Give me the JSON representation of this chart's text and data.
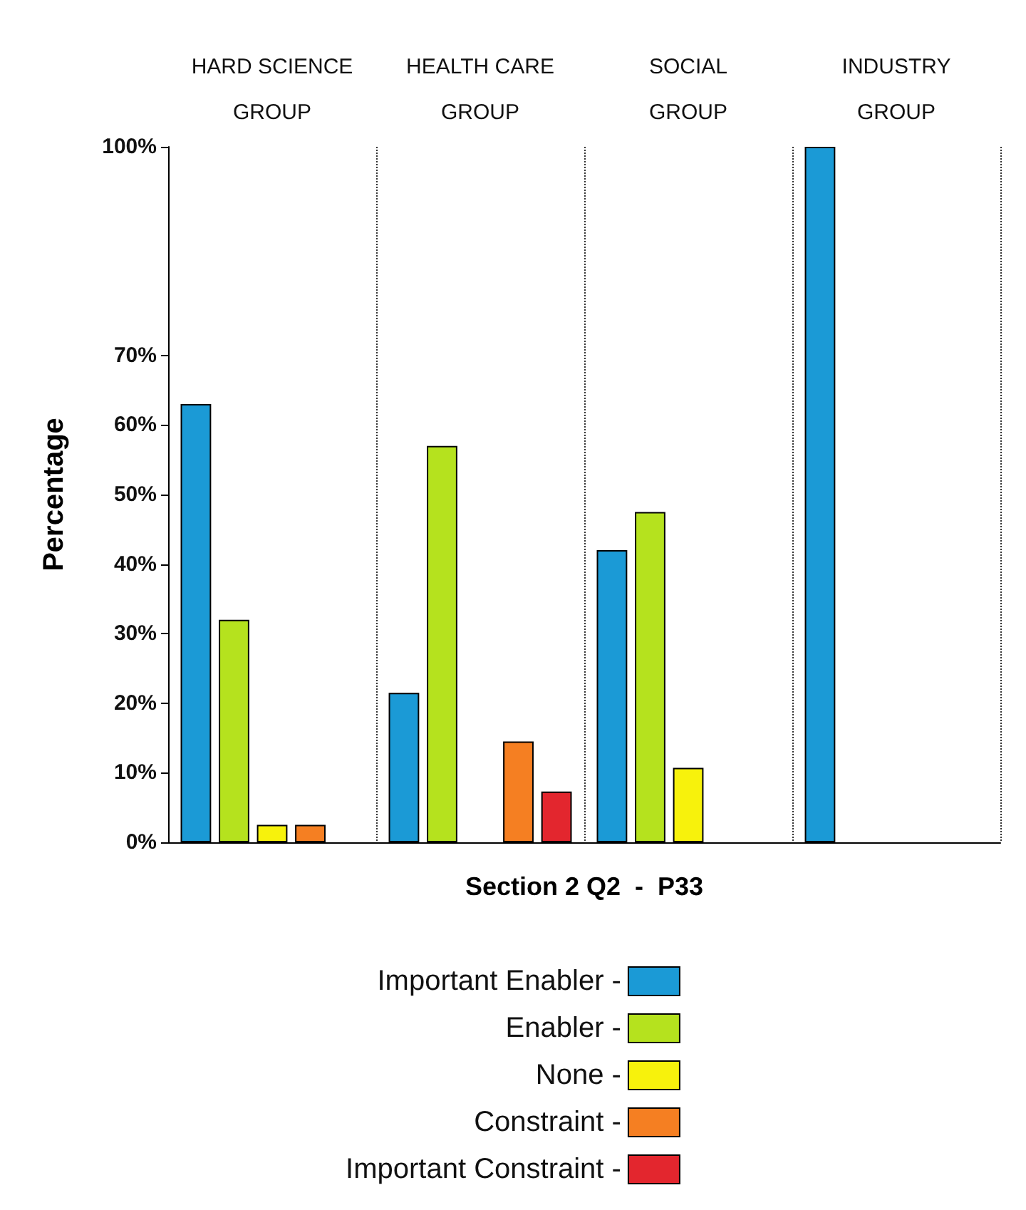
{
  "chart_data": {
    "type": "bar",
    "xlabel": "Section 2 Q2  -  P33",
    "ylabel": "Percentage",
    "categories": [
      "HARD SCIENCE GROUP",
      "HEALTH CARE GROUP",
      "SOCIAL GROUP",
      "INDUSTRY GROUP"
    ],
    "series": [
      {
        "name": "Important Enabler -",
        "color": "#1b9ad6",
        "values": [
          63,
          21.5,
          42,
          100
        ]
      },
      {
        "name": "Enabler -",
        "color": "#b5e21e",
        "values": [
          32,
          57,
          47.5,
          0
        ]
      },
      {
        "name": "None -",
        "color": "#f7f20c",
        "values": [
          2.5,
          0,
          10.7,
          0
        ]
      },
      {
        "name": "Constraint -",
        "color": "#f57f22",
        "values": [
          2.5,
          14.5,
          0,
          0
        ]
      },
      {
        "name": "Important Constraint -",
        "color": "#e3262e",
        "values": [
          0,
          7.3,
          0,
          0
        ]
      }
    ],
    "ylim": [
      0,
      100
    ],
    "yticks": [
      {
        "value": 0,
        "label": "0%"
      },
      {
        "value": 10,
        "label": "10%"
      },
      {
        "value": 20,
        "label": "20%"
      },
      {
        "value": 30,
        "label": "30%"
      },
      {
        "value": 40,
        "label": "40%"
      },
      {
        "value": 50,
        "label": "50%"
      },
      {
        "value": 60,
        "label": "60%"
      },
      {
        "value": 70,
        "label": "70%"
      },
      {
        "value": 100,
        "label": "100%"
      }
    ],
    "grid": "x",
    "legend": "bottom"
  }
}
